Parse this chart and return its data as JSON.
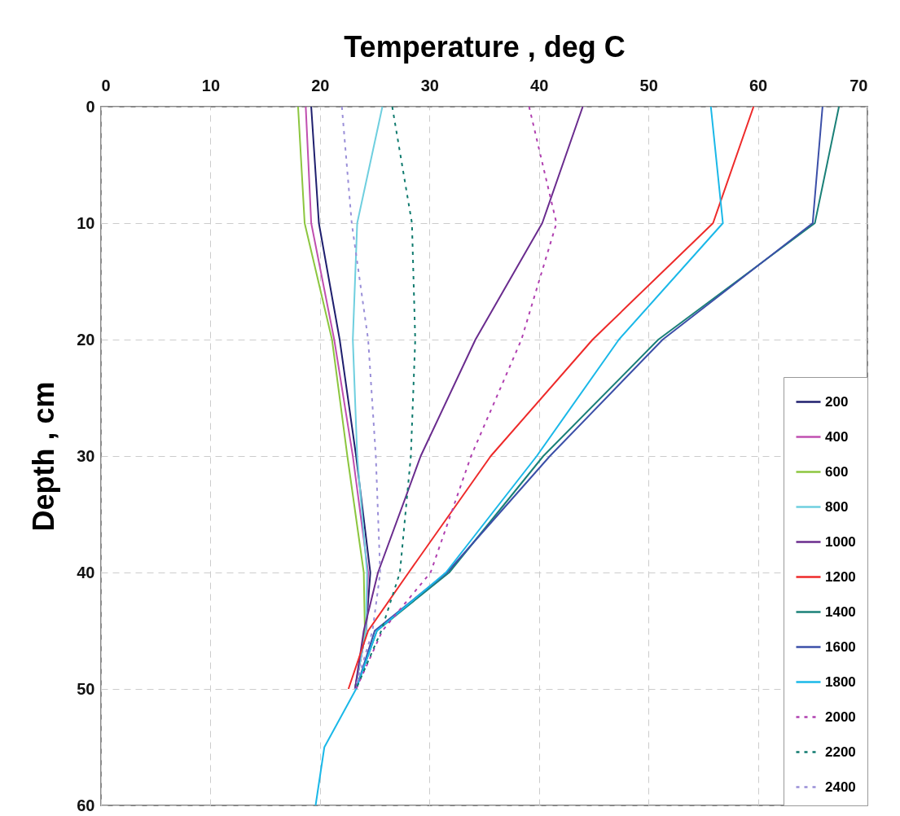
{
  "chart_data": {
    "type": "line",
    "xlabel": "Temperature , deg C",
    "ylabel": "Depth , cm",
    "xlim": [
      0,
      70
    ],
    "xticks": [
      0,
      10,
      20,
      30,
      40,
      50,
      60,
      70
    ],
    "ylim": [
      60,
      0
    ],
    "yticks": [
      0,
      10,
      20,
      30,
      40,
      50,
      60
    ],
    "grid": true,
    "legend": "bottom right",
    "marker": "none",
    "series": [
      {
        "name": "200",
        "color": "#1f1f6e",
        "line_style": "solid",
        "x": [
          19.2,
          19.9,
          21.8,
          23.3,
          24.6,
          24.2,
          23.2
        ],
        "values": [
          0,
          10,
          20,
          30,
          40,
          45,
          50
        ]
      },
      {
        "name": "400",
        "color": "#c04fb0",
        "line_style": "solid",
        "x": [
          18.7,
          19.2,
          21.3,
          23.0,
          24.4,
          24.2,
          23.2
        ],
        "values": [
          0,
          10,
          20,
          30,
          40,
          45,
          50
        ]
      },
      {
        "name": "600",
        "color": "#8cc63f",
        "line_style": "solid",
        "x": [
          18.0,
          18.6,
          21.1,
          22.5,
          24.0,
          24.1,
          23.2
        ],
        "values": [
          0,
          10,
          20,
          30,
          40,
          45,
          50
        ]
      },
      {
        "name": "800",
        "color": "#6fcfdf",
        "line_style": "solid",
        "x": [
          25.7,
          23.4,
          23.0,
          23.4,
          24.3,
          24.2,
          23.2
        ],
        "values": [
          0,
          10,
          20,
          30,
          40,
          45,
          50
        ]
      },
      {
        "name": "1000",
        "color": "#6a2c8e",
        "line_style": "solid",
        "x": [
          44.0,
          40.3,
          34.2,
          29.2,
          25.3,
          24.0,
          23.2
        ],
        "values": [
          0,
          10,
          20,
          30,
          40,
          45,
          50
        ]
      },
      {
        "name": "1200",
        "color": "#ee2a2a",
        "line_style": "solid",
        "x": [
          59.6,
          55.9,
          44.9,
          35.6,
          28.1,
          24.4,
          22.6
        ],
        "values": [
          0,
          10,
          20,
          30,
          40,
          45,
          50
        ]
      },
      {
        "name": "1400",
        "color": "#1a8078",
        "line_style": "solid",
        "x": [
          67.4,
          65.2,
          50.9,
          40.4,
          31.8,
          25.2,
          23.3
        ],
        "values": [
          0,
          10,
          20,
          30,
          40,
          45,
          50
        ]
      },
      {
        "name": "1600",
        "color": "#3b4fa8",
        "line_style": "solid",
        "x": [
          65.9,
          65.0,
          51.3,
          41.0,
          31.6,
          25.0,
          23.3
        ],
        "values": [
          0,
          10,
          20,
          30,
          40,
          45,
          50
        ]
      },
      {
        "name": "1800",
        "color": "#1ab8e8",
        "line_style": "solid",
        "x": [
          55.7,
          56.8,
          47.3,
          39.8,
          31.5,
          25.2,
          23.3,
          20.4,
          19.6
        ],
        "values": [
          0,
          10,
          20,
          30,
          40,
          45,
          50,
          55,
          60
        ]
      },
      {
        "name": "2000",
        "color": "#b040b0",
        "line_style": "dotted",
        "x": [
          39.1,
          41.6,
          38.4,
          33.8,
          30.1,
          25.7,
          23.3
        ],
        "values": [
          0,
          10,
          20,
          30,
          40,
          45,
          50
        ]
      },
      {
        "name": "2200",
        "color": "#0f7a6e",
        "line_style": "dotted",
        "x": [
          26.6,
          28.4,
          28.7,
          28.3,
          27.3,
          25.6,
          23.3
        ],
        "values": [
          0,
          10,
          20,
          30,
          40,
          45,
          50
        ]
      },
      {
        "name": "2400",
        "color": "#9a8fd8",
        "line_style": "dotted",
        "x": [
          22.0,
          22.9,
          24.4,
          25.1,
          25.5,
          24.8,
          23.2
        ],
        "values": [
          0,
          10,
          20,
          30,
          40,
          45,
          50
        ]
      }
    ]
  }
}
